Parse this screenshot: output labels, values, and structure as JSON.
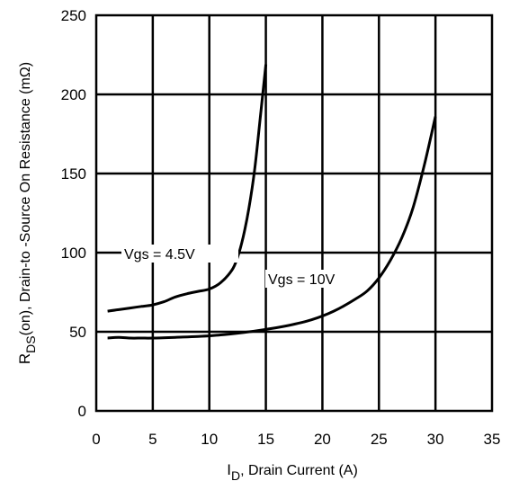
{
  "chart_data": {
    "type": "line",
    "title": "",
    "xlabel": "I_D, Drain Current (A)",
    "xlabel_main": "I",
    "xlabel_sub": "D",
    "xlabel_rest": ", Drain Current (A)",
    "ylabel": "R_DS(on), Drain-to -Source On Resistance (mΩ)",
    "ylabel_main": "R",
    "ylabel_sub": "DS",
    "ylabel_rest": "(on),  Drain-to -Source On Resistance (mΩ)",
    "xlim": [
      0,
      35
    ],
    "ylim": [
      0,
      250
    ],
    "xticks": [
      "0",
      "5",
      "10",
      "15",
      "20",
      "25",
      "30",
      "35"
    ],
    "yticks": [
      "0",
      "50",
      "100",
      "150",
      "200",
      "250"
    ],
    "grid": true,
    "series": [
      {
        "name": "Vgs = 4.5V",
        "x": [
          1,
          2,
          3,
          4,
          5,
          6,
          7,
          8,
          9,
          10,
          11,
          12,
          12.5,
          13,
          13.5,
          14,
          14.5,
          15
        ],
        "y": [
          63,
          64,
          65,
          66,
          67,
          69,
          72,
          74,
          75.5,
          77,
          81,
          89,
          97,
          110,
          128,
          152,
          185,
          219
        ]
      },
      {
        "name": "Vgs = 10V",
        "x": [
          1,
          2,
          3,
          4,
          5,
          7,
          9,
          11,
          13,
          15,
          17,
          19,
          21,
          23,
          24,
          25,
          26,
          27,
          28,
          29,
          30
        ],
        "y": [
          46,
          46.5,
          46,
          46,
          46,
          46.5,
          47,
          48,
          49.5,
          51.5,
          54,
          57.5,
          63,
          71,
          76,
          84,
          95,
          109,
          128,
          155,
          186
        ]
      }
    ]
  }
}
